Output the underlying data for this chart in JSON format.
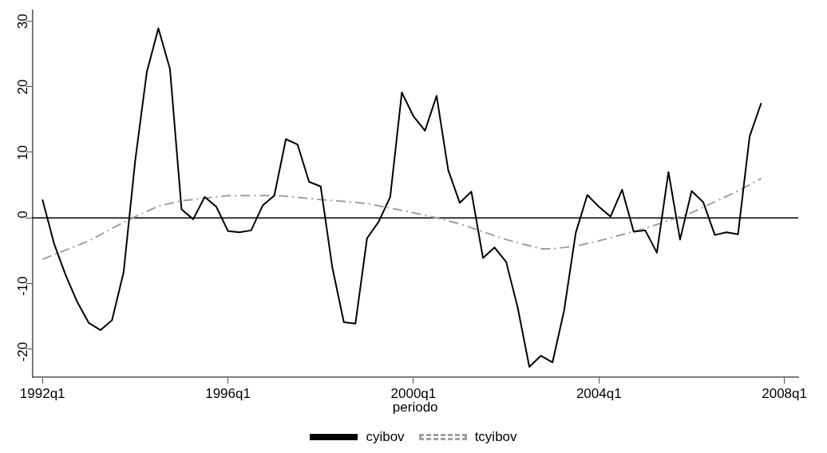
{
  "chart_data": {
    "type": "line",
    "xlabel": "periodo",
    "xlim": [
      "1991-10-12",
      "2008-04-19"
    ],
    "xticks": [
      {
        "value": "1992-01",
        "label": "1992q1"
      },
      {
        "value": "1996-01",
        "label": "1996q1"
      },
      {
        "value": "2000-01",
        "label": "2000q1"
      },
      {
        "value": "2004-01",
        "label": "2004q1"
      },
      {
        "value": "2008-01",
        "label": "2008q1"
      }
    ],
    "ylim": [
      -24.3,
      31.6
    ],
    "yticks": [
      -20,
      -10,
      0,
      10,
      20,
      30
    ],
    "grid": false,
    "legend": "bottom",
    "marker": "none",
    "ref_lines": [
      {
        "axis": "y",
        "value": 0,
        "color": "#000000"
      }
    ],
    "series": [
      {
        "name": "cyibov",
        "color": "#000000",
        "line_style": "solid",
        "x": [
          "1992-01",
          "1992-04",
          "1992-07",
          "1992-10",
          "1993-01",
          "1993-04",
          "1993-07",
          "1993-10",
          "1994-01",
          "1994-04",
          "1994-07",
          "1994-10",
          "1995-01",
          "1995-04",
          "1995-07",
          "1995-10",
          "1996-01",
          "1996-04",
          "1996-07",
          "1996-10",
          "1997-01",
          "1997-04",
          "1997-07",
          "1997-10",
          "1998-01",
          "1998-04",
          "1998-07",
          "1998-10",
          "1999-01",
          "1999-04",
          "1999-07",
          "1999-10",
          "2000-01",
          "2000-04",
          "2000-07",
          "2000-10",
          "2001-01",
          "2001-04",
          "2001-07",
          "2001-10",
          "2002-01",
          "2002-04",
          "2002-07",
          "2002-10",
          "2003-01",
          "2003-04",
          "2003-07",
          "2003-10",
          "2004-01",
          "2004-04",
          "2004-07",
          "2004-10",
          "2005-01",
          "2005-04",
          "2005-07",
          "2005-10",
          "2006-01",
          "2006-04",
          "2006-07",
          "2006-10",
          "2007-01",
          "2007-04",
          "2007-07"
        ],
        "values": [
          2.8,
          -3.9,
          -8.7,
          -12.8,
          -16.0,
          -17.1,
          -15.6,
          -8.3,
          8.7,
          22.2,
          28.9,
          22.7,
          1.3,
          -0.2,
          3.2,
          1.7,
          -2.0,
          -2.2,
          -1.9,
          1.9,
          3.4,
          12.0,
          11.2,
          5.5,
          4.8,
          -7.5,
          -15.9,
          -16.1,
          -3.1,
          -0.6,
          3.2,
          19.1,
          15.5,
          13.3,
          18.6,
          7.3,
          2.3,
          4.0,
          -6.1,
          -4.5,
          -6.7,
          -13.7,
          -22.7,
          -21.0,
          -22.0,
          -14.1,
          -2.3,
          3.5,
          1.7,
          0.2,
          4.3,
          -2.1,
          -1.9,
          -5.3,
          7.0,
          -3.3,
          4.1,
          2.4,
          -2.6,
          -2.2,
          -2.5,
          12.4,
          17.5
        ]
      },
      {
        "name": "tcyibov",
        "color": "#a0a0a0",
        "line_style": "dashed",
        "x": [
          "1992-01",
          "1992-07",
          "1993-01",
          "1993-07",
          "1994-01",
          "1994-07",
          "1995-01",
          "1996-01",
          "1997-01",
          "1997-04",
          "1998-01",
          "1999-01",
          "2000-01",
          "2000-07",
          "2001-01",
          "2002-01",
          "2002-10",
          "2003-01",
          "2003-07",
          "2004-01",
          "2005-01",
          "2006-01",
          "2007-01",
          "2007-07"
        ],
        "values": [
          -6.3,
          -4.9,
          -3.5,
          -1.6,
          0.2,
          1.8,
          2.6,
          3.4,
          3.4,
          3.3,
          2.8,
          2.2,
          0.8,
          0,
          -0.9,
          -3.3,
          -4.7,
          -4.7,
          -4.3,
          -3.5,
          -1.6,
          0.8,
          4.1,
          6.0
        ]
      }
    ]
  }
}
